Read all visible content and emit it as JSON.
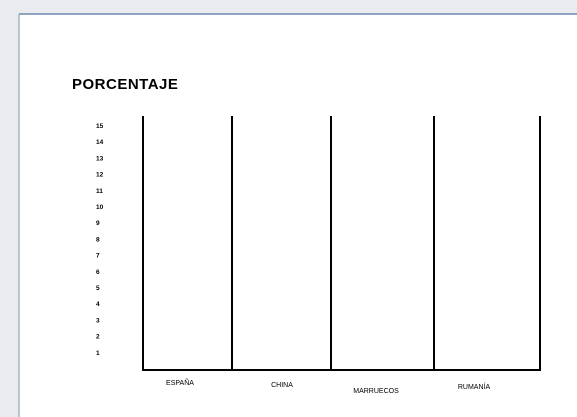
{
  "document": {
    "title": "PORCENTAJE",
    "row_labels": [
      "15",
      "14",
      "13",
      "12",
      "11",
      "10",
      "9",
      "8",
      "7",
      "6",
      "5",
      "4",
      "3",
      "2",
      "1"
    ],
    "column_labels": [
      "ESPAÑA",
      "CHINA",
      "MARRUECOS",
      "RUMANÍA"
    ]
  }
}
